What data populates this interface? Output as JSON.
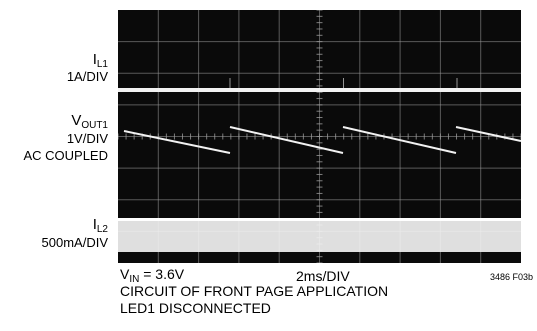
{
  "chart_data": {
    "type": "line",
    "channels": [
      {
        "symbol": "I",
        "subscript": "L1",
        "scale": "1A/DIV",
        "coupling": ""
      },
      {
        "symbol": "V",
        "subscript": "OUT1",
        "scale": "1V/DIV",
        "coupling": "AC COUPLED"
      },
      {
        "symbol": "I",
        "subscript": "L2",
        "scale": "500mA/DIV",
        "coupling": ""
      }
    ],
    "grid": {
      "divisions_x": 10,
      "divisions_y": 8,
      "minor_ticks": true
    },
    "timebase": "2ms/DIV",
    "figure_code": "3486 F03b",
    "grid_on": true
  },
  "conditions": {
    "vin_symbol": "V",
    "vin_subscript": "IN",
    "vin_value": " = 3.6V",
    "line1": "CIRCUIT OF FRONT PAGE APPLICATION",
    "line2": "LED1 DISCONNECTED"
  },
  "colors": {
    "screen": "#0a0a0a",
    "grid": "#9a9a9a",
    "trace": "#f2f2f2"
  }
}
